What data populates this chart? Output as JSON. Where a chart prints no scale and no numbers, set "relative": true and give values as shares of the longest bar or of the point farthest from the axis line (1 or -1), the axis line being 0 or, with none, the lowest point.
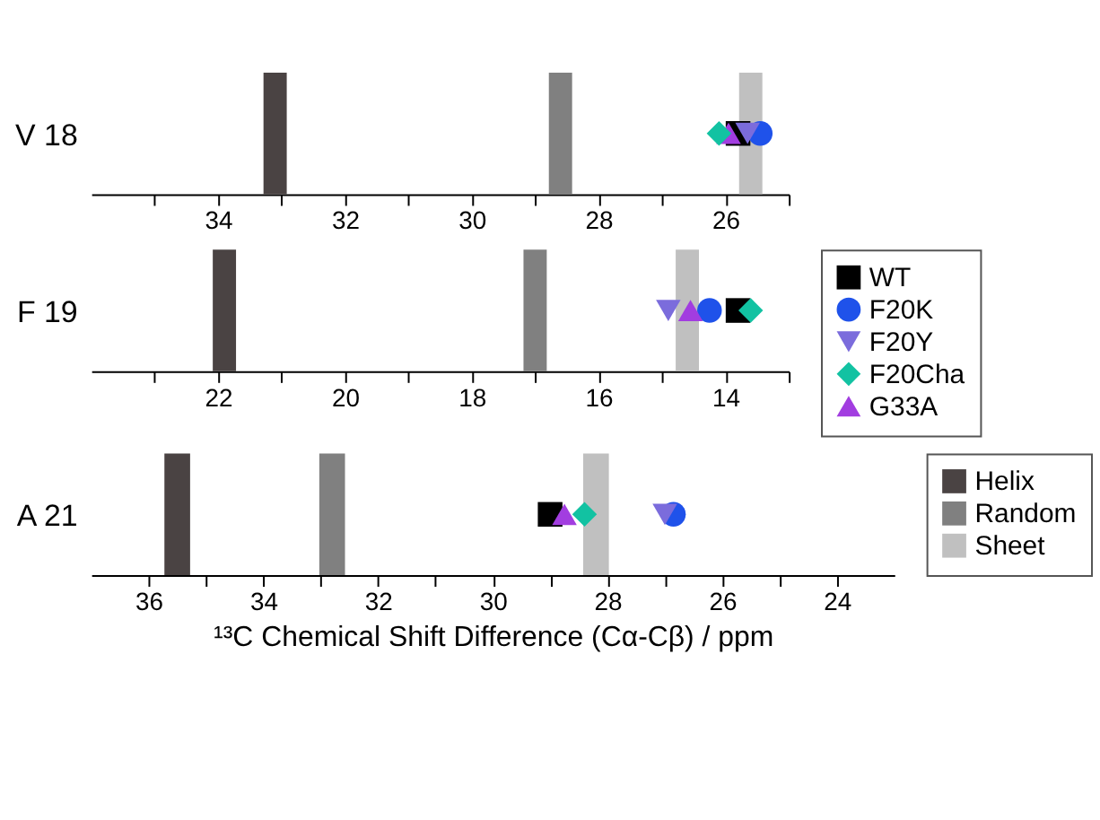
{
  "chart_data": [
    {
      "type": "bar",
      "relative": true,
      "ylabel": "V 18",
      "xlim": [
        36,
        25
      ],
      "xticks": [
        {
          "value": 35,
          "label": null
        },
        34,
        {
          "value": 33,
          "label": null
        },
        32,
        {
          "value": 31,
          "label": null
        },
        30,
        {
          "value": 29,
          "label": null
        },
        28,
        {
          "value": 27,
          "label": null
        },
        26,
        {
          "value": 25,
          "label": null
        }
      ],
      "grid": false,
      "legend": false,
      "series": [
        {
          "type": "bar",
          "color": "#4a4343",
          "x": [
            33.1
          ],
          "values": [
            1
          ]
        },
        {
          "type": "bar",
          "color": "#808080",
          "x": [
            28.6
          ],
          "values": [
            1
          ]
        },
        {
          "type": "bar",
          "color": "#c0c0c0",
          "x": [
            25.6
          ],
          "values": [
            1
          ]
        },
        {
          "type": "scatter",
          "marker": "square",
          "color": "#000000",
          "x": [
            25.8
          ],
          "values": [
            0.5
          ]
        },
        {
          "type": "scatter",
          "marker": "triangle",
          "color": "#a23de0",
          "x": [
            25.95
          ],
          "values": [
            0.5
          ]
        },
        {
          "type": "scatter",
          "marker": "diamond",
          "color": "#12c2a2",
          "x": [
            26.1
          ],
          "values": [
            0.5
          ]
        },
        {
          "type": "scatter",
          "marker": "circle",
          "color": "#1f52ea",
          "x": [
            25.45
          ],
          "values": [
            0.5
          ]
        },
        {
          "type": "scatter",
          "marker": "triangle-down",
          "color": "#7b6cdc",
          "x": [
            25.65
          ],
          "values": [
            0.5
          ]
        }
      ]
    },
    {
      "type": "bar",
      "relative": true,
      "ylabel": "F 19",
      "xlim": [
        24,
        13
      ],
      "xticks": [
        {
          "value": 23,
          "label": null
        },
        22,
        {
          "value": 21,
          "label": null
        },
        20,
        {
          "value": 19,
          "label": null
        },
        18,
        {
          "value": 17,
          "label": null
        },
        16,
        {
          "value": 15,
          "label": null
        },
        14,
        {
          "value": 13,
          "label": null
        }
      ],
      "grid": false,
      "legend": "right",
      "series": [
        {
          "type": "bar",
          "color": "#4a4343",
          "x": [
            21.9
          ],
          "values": [
            1
          ]
        },
        {
          "type": "bar",
          "color": "#808080",
          "x": [
            17.0
          ],
          "values": [
            1
          ]
        },
        {
          "type": "bar",
          "color": "#c0c0c0",
          "x": [
            14.6
          ],
          "values": [
            1
          ]
        },
        {
          "type": "scatter",
          "name": "WT",
          "marker": "square",
          "color": "#000000",
          "x": [
            13.8
          ],
          "values": [
            0.5
          ]
        },
        {
          "type": "scatter",
          "name": "F20K",
          "marker": "circle",
          "color": "#1f52ea",
          "x": [
            14.25
          ],
          "values": [
            0.5
          ]
        },
        {
          "type": "scatter",
          "name": "F20Y",
          "marker": "triangle-down",
          "color": "#7b6cdc",
          "x": [
            14.9
          ],
          "values": [
            0.5
          ]
        },
        {
          "type": "scatter",
          "name": "F20Cha",
          "marker": "diamond",
          "color": "#12c2a2",
          "x": [
            13.6
          ],
          "values": [
            0.5
          ]
        },
        {
          "type": "scatter",
          "name": "G33A",
          "marker": "triangle",
          "color": "#a23de0",
          "x": [
            14.55
          ],
          "values": [
            0.5
          ]
        }
      ]
    },
    {
      "type": "bar",
      "relative": true,
      "ylabel": "A 21",
      "xlabel": "¹³C Chemical Shift Difference (Cα-Cβ) / ppm",
      "xlim": [
        37,
        23
      ],
      "xticks": [
        36,
        {
          "value": 35,
          "label": null
        },
        34,
        {
          "value": 33,
          "label": null
        },
        32,
        {
          "value": 31,
          "label": null
        },
        30,
        {
          "value": 29,
          "label": null
        },
        28,
        {
          "value": 27,
          "label": null
        },
        26,
        {
          "value": 25,
          "label": null
        },
        24
      ],
      "grid": false,
      "legend": "right",
      "series": [
        {
          "type": "bar",
          "name": "Helix",
          "color": "#4a4343",
          "x": [
            35.5
          ],
          "values": [
            1
          ]
        },
        {
          "type": "bar",
          "name": "Random",
          "color": "#808080",
          "x": [
            32.8
          ],
          "values": [
            1
          ]
        },
        {
          "type": "bar",
          "name": "Sheet",
          "color": "#c0c0c0",
          "x": [
            28.2
          ],
          "values": [
            1
          ]
        },
        {
          "type": "scatter",
          "marker": "square",
          "color": "#000000",
          "x": [
            29.0
          ],
          "values": [
            0.5
          ]
        },
        {
          "type": "scatter",
          "marker": "triangle",
          "color": "#a23de0",
          "x": [
            28.75
          ],
          "values": [
            0.5
          ]
        },
        {
          "type": "scatter",
          "marker": "diamond",
          "color": "#12c2a2",
          "x": [
            28.4
          ],
          "values": [
            0.5
          ]
        },
        {
          "type": "scatter",
          "marker": "circle",
          "color": "#1f52ea",
          "x": [
            26.85
          ],
          "values": [
            0.5
          ]
        },
        {
          "type": "scatter",
          "marker": "triangle-down",
          "color": "#7b6cdc",
          "x": [
            27.0
          ],
          "values": [
            0.5
          ]
        }
      ]
    }
  ]
}
